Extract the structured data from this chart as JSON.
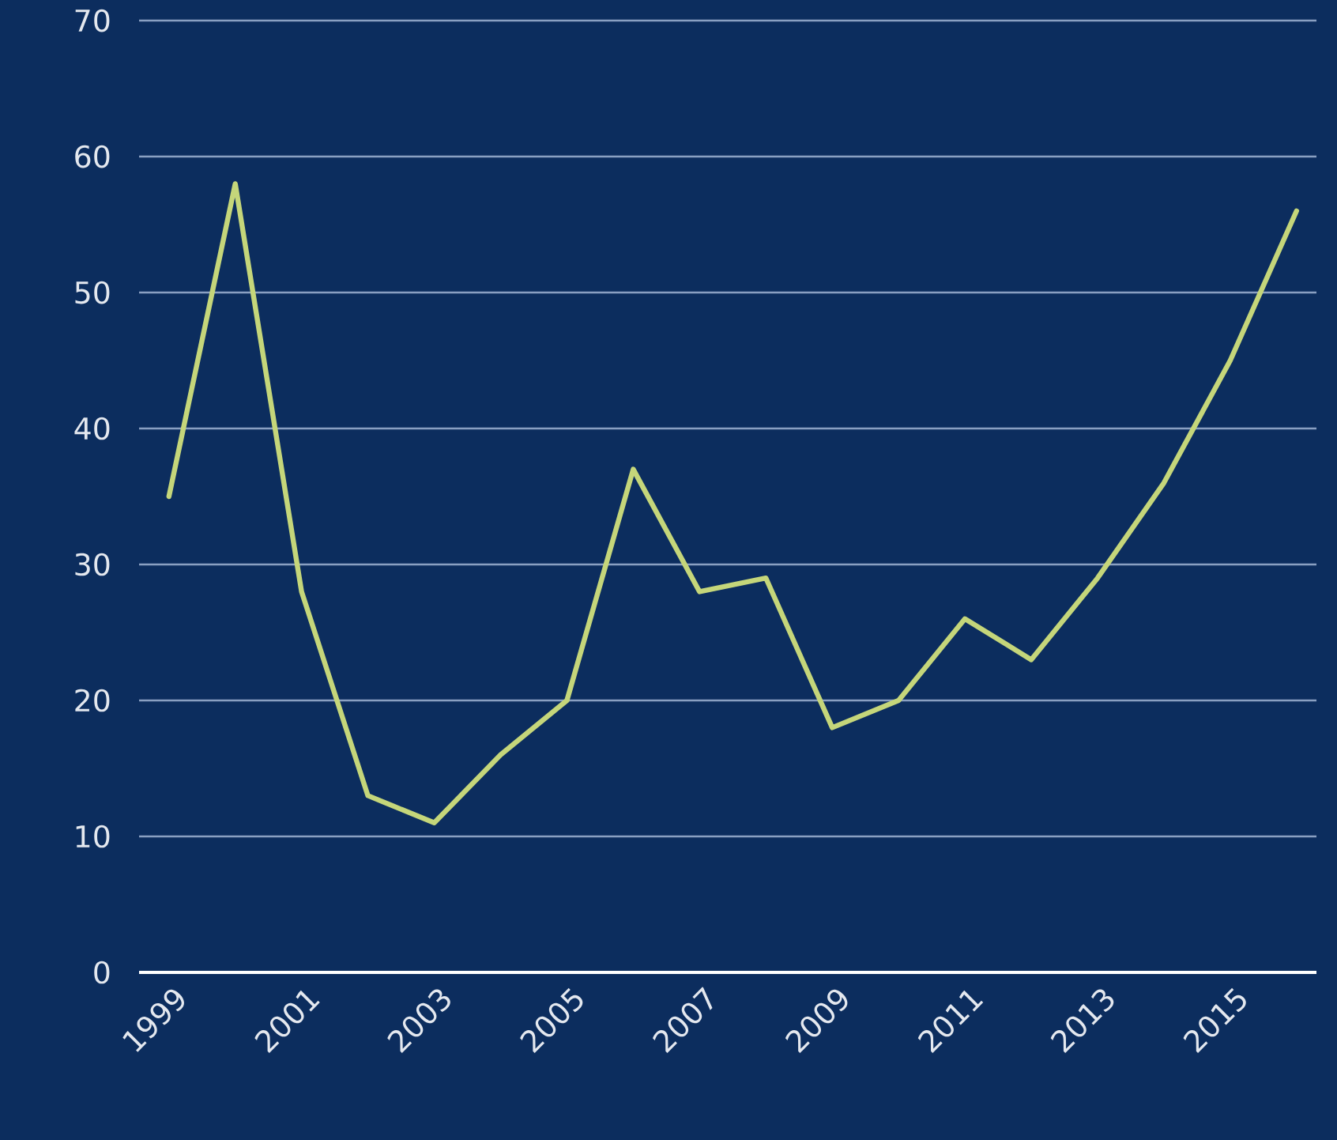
{
  "chart_data": {
    "type": "line",
    "x": [
      1999,
      2000,
      2001,
      2002,
      2003,
      2004,
      2005,
      2006,
      2007,
      2008,
      2009,
      2010,
      2011,
      2012,
      2013,
      2014,
      2015,
      2016
    ],
    "series": [
      {
        "color": "#c5d67a",
        "values": [
          35,
          58,
          28,
          13,
          11,
          16,
          20,
          37,
          28,
          29,
          18,
          20,
          26,
          23,
          29,
          36,
          45,
          56
        ]
      }
    ],
    "xlim": [
      1998.55,
      2016.3
    ],
    "xticks": [
      1999,
      2001,
      2003,
      2005,
      2007,
      2009,
      2011,
      2013,
      2015
    ],
    "ylim": [
      0,
      70
    ],
    "yticks": [
      0,
      10,
      20,
      30,
      40,
      50,
      60,
      70
    ],
    "grid": "y",
    "marker": "none",
    "line_style": "solid"
  }
}
